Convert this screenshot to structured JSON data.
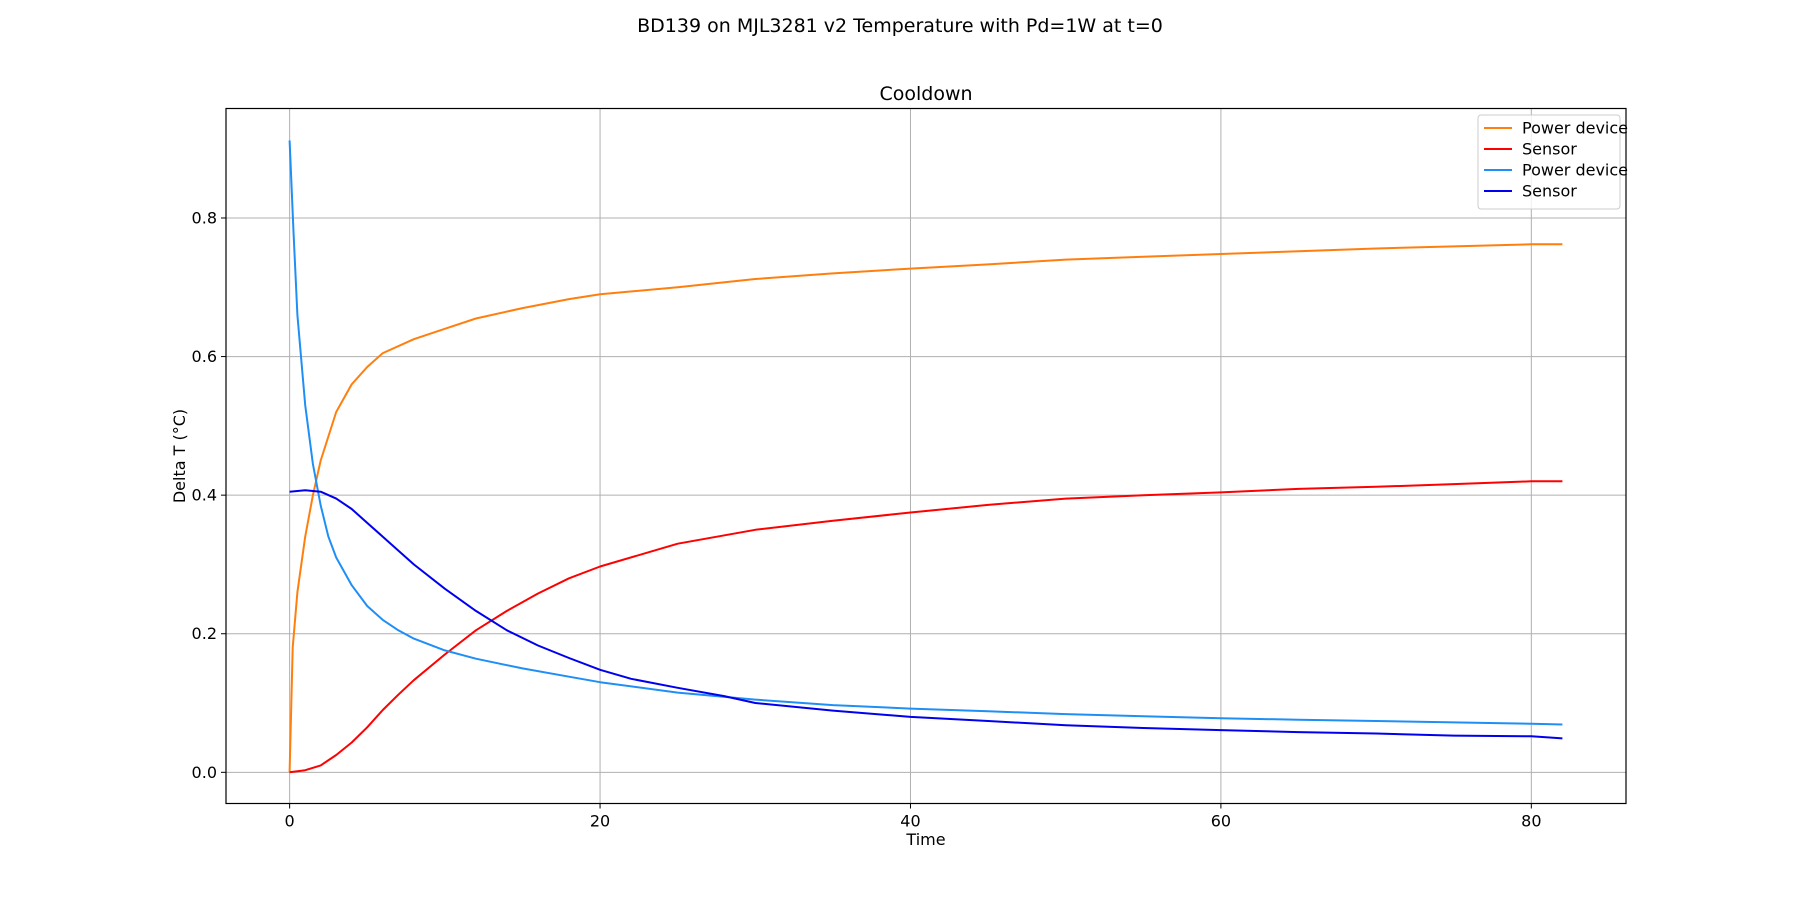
{
  "suptitle": "BD139 on MJL3281 v2 Temperature with Pd=1W at t=0",
  "chart_data": {
    "type": "line",
    "title": "Cooldown",
    "xlabel": "Time",
    "ylabel": "Delta T (°C)",
    "xlim": [
      -4.1,
      86.1
    ],
    "ylim": [
      -0.045,
      0.958
    ],
    "xticks": [
      0,
      20,
      40,
      60,
      80
    ],
    "yticks": [
      0.0,
      0.2,
      0.4,
      0.6,
      0.8
    ],
    "xtick_labels": [
      "0",
      "20",
      "40",
      "60",
      "80"
    ],
    "ytick_labels": [
      "0.0",
      "0.2",
      "0.4",
      "0.6",
      "0.8"
    ],
    "grid": true,
    "legend_position": "top-right",
    "series": [
      {
        "name": "Power device",
        "color": "#ff7f0e",
        "x": [
          0,
          0.2,
          0.5,
          1,
          1.5,
          2,
          3,
          4,
          5,
          6,
          8,
          10,
          12,
          15,
          18,
          20,
          25,
          30,
          35,
          40,
          45,
          50,
          55,
          60,
          65,
          70,
          75,
          80,
          82
        ],
        "y": [
          0.0,
          0.18,
          0.26,
          0.34,
          0.4,
          0.45,
          0.52,
          0.56,
          0.585,
          0.605,
          0.625,
          0.64,
          0.655,
          0.67,
          0.683,
          0.69,
          0.7,
          0.712,
          0.72,
          0.727,
          0.733,
          0.74,
          0.744,
          0.748,
          0.752,
          0.756,
          0.759,
          0.762,
          0.762
        ]
      },
      {
        "name": "Sensor",
        "color": "#ff0000",
        "x": [
          0,
          1,
          2,
          3,
          4,
          5,
          6,
          7,
          8,
          10,
          12,
          14,
          16,
          18,
          20,
          25,
          30,
          35,
          40,
          45,
          50,
          55,
          60,
          65,
          70,
          75,
          80,
          82
        ],
        "y": [
          0.0,
          0.003,
          0.01,
          0.025,
          0.043,
          0.065,
          0.09,
          0.112,
          0.133,
          0.17,
          0.205,
          0.233,
          0.258,
          0.28,
          0.297,
          0.33,
          0.35,
          0.363,
          0.375,
          0.386,
          0.395,
          0.4,
          0.404,
          0.409,
          0.412,
          0.416,
          0.42,
          0.42
        ]
      },
      {
        "name": "Power device",
        "color": "#1f8ff5",
        "x": [
          0,
          0.25,
          0.5,
          1,
          1.5,
          2,
          2.5,
          3,
          4,
          5,
          6,
          7,
          8,
          10,
          12,
          15,
          18,
          20,
          25,
          30,
          35,
          40,
          45,
          50,
          55,
          60,
          65,
          70,
          75,
          80,
          82
        ],
        "y": [
          0.912,
          0.78,
          0.66,
          0.53,
          0.445,
          0.385,
          0.34,
          0.31,
          0.27,
          0.24,
          0.22,
          0.205,
          0.193,
          0.176,
          0.164,
          0.15,
          0.138,
          0.13,
          0.115,
          0.105,
          0.097,
          0.092,
          0.088,
          0.084,
          0.081,
          0.078,
          0.076,
          0.074,
          0.072,
          0.07,
          0.069
        ]
      },
      {
        "name": "Sensor",
        "color": "#0000ee",
        "x": [
          0,
          1,
          2,
          3,
          4,
          5,
          6,
          8,
          10,
          12,
          14,
          16,
          18,
          20,
          22,
          25,
          28,
          30,
          35,
          40,
          45,
          50,
          55,
          60,
          65,
          70,
          75,
          80,
          82
        ],
        "y": [
          0.405,
          0.407,
          0.405,
          0.395,
          0.38,
          0.36,
          0.34,
          0.3,
          0.265,
          0.233,
          0.205,
          0.183,
          0.165,
          0.148,
          0.135,
          0.122,
          0.11,
          0.1,
          0.089,
          0.08,
          0.074,
          0.068,
          0.064,
          0.061,
          0.058,
          0.056,
          0.053,
          0.052,
          0.049
        ]
      }
    ]
  }
}
